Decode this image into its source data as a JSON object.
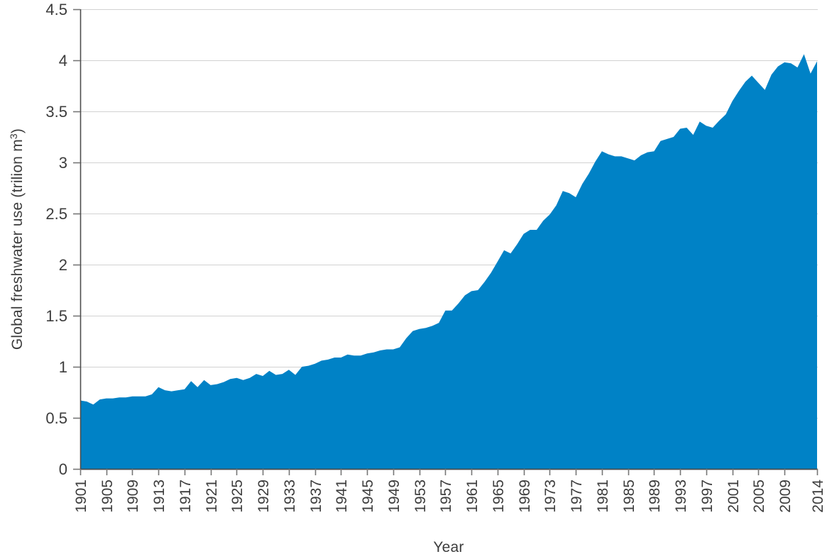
{
  "chart_data": {
    "type": "area",
    "title": "",
    "xlabel": "Year",
    "ylabel": "Global freshwater use (trilion m³)",
    "ylabel_parts": {
      "prefix": "Global freshwater use (trilion m",
      "superscript": "3",
      "suffix": ")"
    },
    "series_name": "Global freshwater use",
    "xlim": [
      1901,
      2014
    ],
    "ylim": [
      0,
      4.5
    ],
    "grid": true,
    "legend_position": "none",
    "x": [
      1901,
      1902,
      1903,
      1904,
      1905,
      1906,
      1907,
      1908,
      1909,
      1910,
      1911,
      1912,
      1913,
      1914,
      1915,
      1916,
      1917,
      1918,
      1919,
      1920,
      1921,
      1922,
      1923,
      1924,
      1925,
      1926,
      1927,
      1928,
      1929,
      1930,
      1931,
      1932,
      1933,
      1934,
      1935,
      1936,
      1937,
      1938,
      1939,
      1940,
      1941,
      1942,
      1943,
      1944,
      1945,
      1946,
      1947,
      1948,
      1949,
      1950,
      1951,
      1952,
      1953,
      1954,
      1955,
      1956,
      1957,
      1958,
      1959,
      1960,
      1961,
      1962,
      1963,
      1964,
      1965,
      1966,
      1967,
      1968,
      1969,
      1970,
      1971,
      1972,
      1973,
      1974,
      1975,
      1976,
      1977,
      1978,
      1979,
      1980,
      1981,
      1982,
      1983,
      1984,
      1985,
      1986,
      1987,
      1988,
      1989,
      1990,
      1991,
      1992,
      1993,
      1994,
      1995,
      1996,
      1997,
      1998,
      1999,
      2000,
      2001,
      2002,
      2003,
      2004,
      2005,
      2006,
      2007,
      2008,
      2009,
      2010,
      2011,
      2012,
      2013,
      2014
    ],
    "values": [
      0.67,
      0.66,
      0.63,
      0.68,
      0.69,
      0.69,
      0.7,
      0.7,
      0.71,
      0.71,
      0.71,
      0.73,
      0.8,
      0.77,
      0.76,
      0.77,
      0.78,
      0.86,
      0.8,
      0.87,
      0.82,
      0.83,
      0.85,
      0.88,
      0.89,
      0.87,
      0.89,
      0.93,
      0.91,
      0.96,
      0.92,
      0.93,
      0.97,
      0.92,
      1.0,
      1.01,
      1.03,
      1.06,
      1.07,
      1.09,
      1.09,
      1.12,
      1.11,
      1.11,
      1.13,
      1.14,
      1.16,
      1.17,
      1.17,
      1.19,
      1.28,
      1.35,
      1.37,
      1.38,
      1.4,
      1.43,
      1.55,
      1.55,
      1.62,
      1.7,
      1.74,
      1.75,
      1.83,
      1.92,
      2.03,
      2.14,
      2.11,
      2.2,
      2.3,
      2.34,
      2.34,
      2.43,
      2.49,
      2.58,
      2.72,
      2.7,
      2.66,
      2.79,
      2.89,
      3.01,
      3.11,
      3.08,
      3.06,
      3.06,
      3.04,
      3.02,
      3.07,
      3.1,
      3.11,
      3.21,
      3.23,
      3.25,
      3.33,
      3.34,
      3.27,
      3.4,
      3.36,
      3.34,
      3.41,
      3.47,
      3.6,
      3.7,
      3.79,
      3.85,
      3.78,
      3.71,
      3.86,
      3.94,
      3.98,
      3.97,
      3.93,
      4.06,
      3.87,
      3.99
    ],
    "y_ticks": [
      0,
      0.5,
      1,
      1.5,
      2,
      2.5,
      3,
      3.5,
      4,
      4.5
    ],
    "y_tick_labels": [
      "0",
      "0.5",
      "1",
      "1.5",
      "2",
      "2.5",
      "3",
      "3.5",
      "4",
      "4.5"
    ],
    "x_tick_labels": [
      "1901",
      "1905",
      "1909",
      "1913",
      "1917",
      "1921",
      "1925",
      "1929",
      "1933",
      "1937",
      "1941",
      "1945",
      "1949",
      "1953",
      "1957",
      "1961",
      "1965",
      "1969",
      "1973",
      "1977",
      "1981",
      "1985",
      "1989",
      "1993",
      "1997",
      "2001",
      "2005",
      "2009",
      "2014"
    ],
    "colors": {
      "area_fill": "#0082C6",
      "grid_line": "#d2d2d2",
      "axis_line": "#4d4d4d",
      "tick_mark": "#767676",
      "tick_label": "#3d3d3d",
      "axis_title": "#3d3d3d",
      "background": "#ffffff"
    }
  }
}
